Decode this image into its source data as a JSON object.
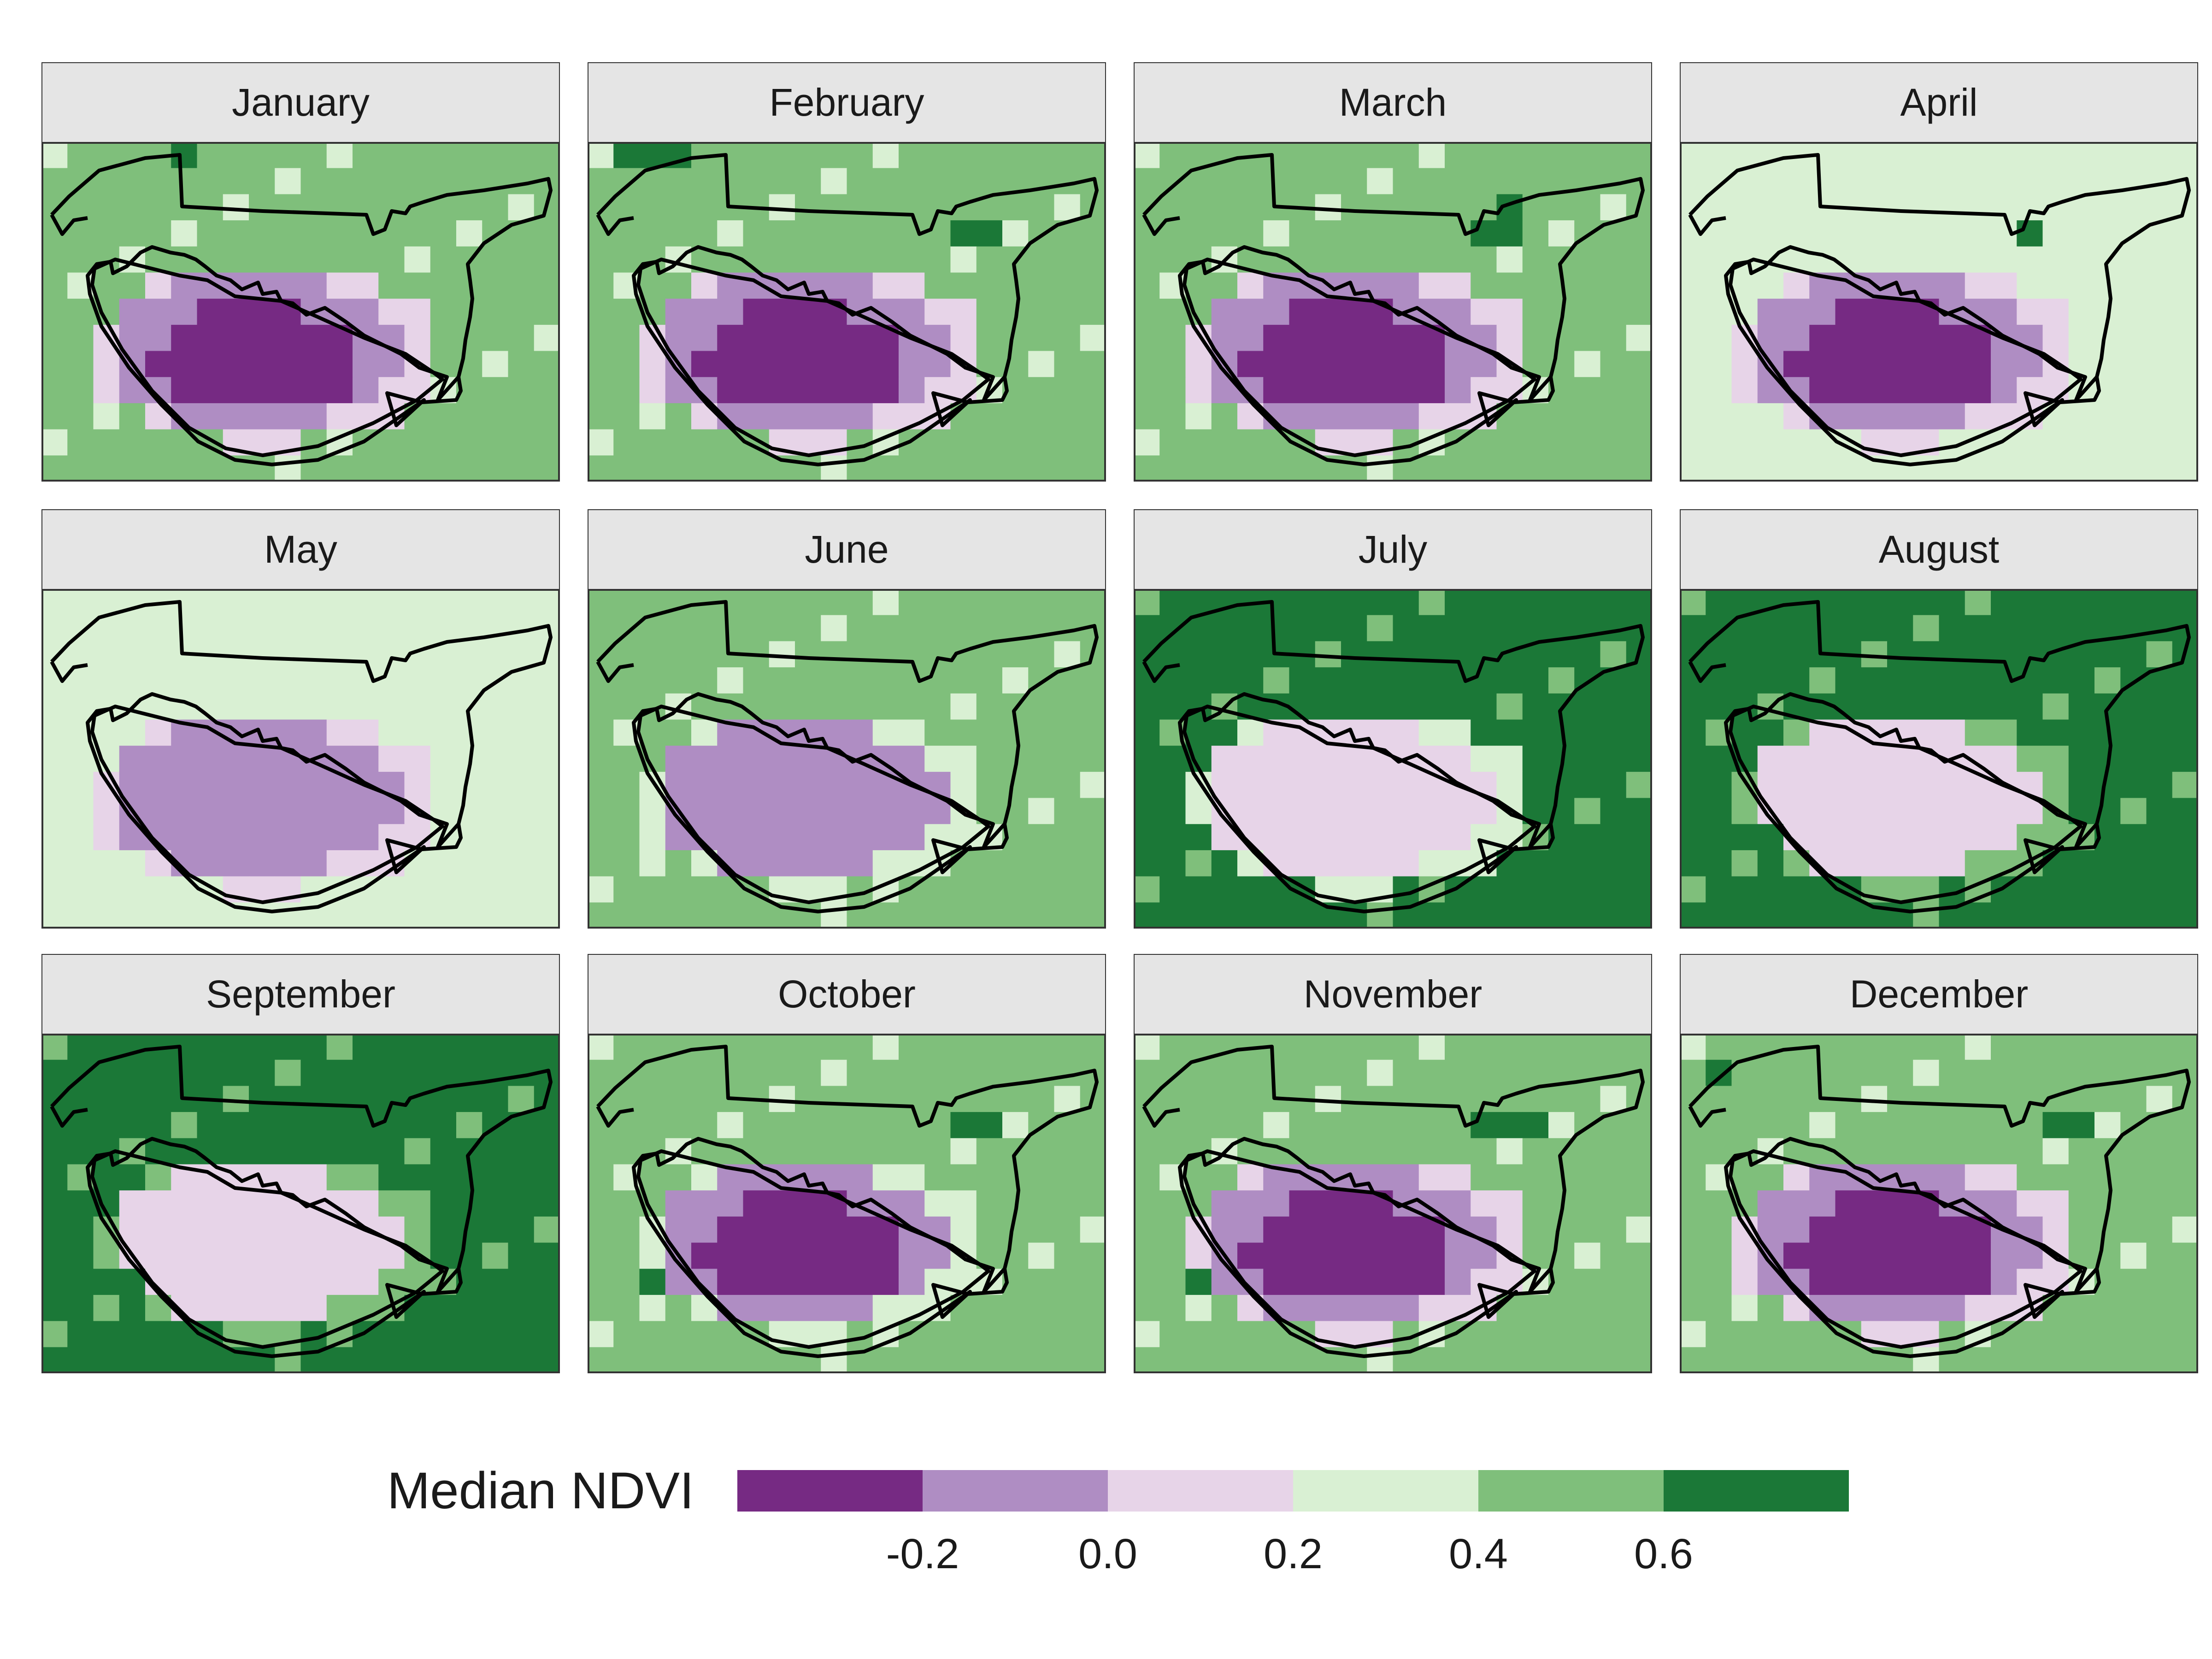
{
  "legend": {
    "title": "Median NDVI",
    "bins": [
      {
        "color": "#762a83"
      },
      {
        "color": "#af8dc3"
      },
      {
        "color": "#e7d4e8"
      },
      {
        "color": "#d9f0d3"
      },
      {
        "color": "#7fbf7b"
      },
      {
        "color": "#1b7837"
      }
    ],
    "tick_labels": [
      "-0.2",
      "0.0",
      "0.2",
      "0.4",
      "0.6"
    ]
  },
  "panels": [
    {
      "month": "January",
      "outer": 4,
      "inner": 2,
      "core": 0,
      "dark": [
        [
          5,
          0
        ]
      ]
    },
    {
      "month": "February",
      "outer": 4,
      "inner": 2,
      "core": 0,
      "dark": [
        [
          1,
          0
        ],
        [
          2,
          0
        ],
        [
          3,
          0
        ],
        [
          14,
          3
        ],
        [
          15,
          3
        ]
      ]
    },
    {
      "month": "March",
      "outer": 4,
      "inner": 2,
      "core": 0,
      "dark": [
        [
          13,
          3
        ],
        [
          14,
          3
        ],
        [
          14,
          2
        ]
      ]
    },
    {
      "month": "April",
      "outer": 3,
      "inner": 2,
      "core": 0,
      "dark": [
        [
          13,
          3
        ]
      ]
    },
    {
      "month": "May",
      "outer": 3,
      "inner": 2,
      "core": 1,
      "dark": []
    },
    {
      "month": "June",
      "outer": 4,
      "inner": 3,
      "core": 1,
      "dark": [
        [
          0,
          0
        ]
      ]
    },
    {
      "month": "July",
      "outer": 5,
      "inner": 3,
      "core": 2,
      "dark": [
        [
          1,
          9
        ],
        [
          2,
          9
        ],
        [
          15,
          8
        ]
      ]
    },
    {
      "month": "August",
      "outer": 5,
      "inner": 4,
      "core": 2,
      "dark": [
        [
          2,
          9
        ],
        [
          3,
          9
        ],
        [
          16,
          9
        ]
      ]
    },
    {
      "month": "September",
      "outer": 5,
      "inner": 4,
      "core": 2,
      "dark": [
        [
          2,
          9
        ],
        [
          3,
          9
        ],
        [
          17,
          7
        ]
      ]
    },
    {
      "month": "October",
      "outer": 4,
      "inner": 3,
      "core": 0,
      "dark": [
        [
          14,
          3
        ],
        [
          15,
          3
        ],
        [
          2,
          9
        ]
      ]
    },
    {
      "month": "November",
      "outer": 4,
      "inner": 2,
      "core": 0,
      "dark": [
        [
          13,
          3
        ],
        [
          14,
          3
        ],
        [
          15,
          3
        ],
        [
          2,
          9
        ]
      ]
    },
    {
      "month": "December",
      "outer": 4,
      "inner": 2,
      "core": 0,
      "dark": [
        [
          14,
          3
        ],
        [
          15,
          3
        ],
        [
          1,
          1
        ]
      ]
    }
  ]
}
